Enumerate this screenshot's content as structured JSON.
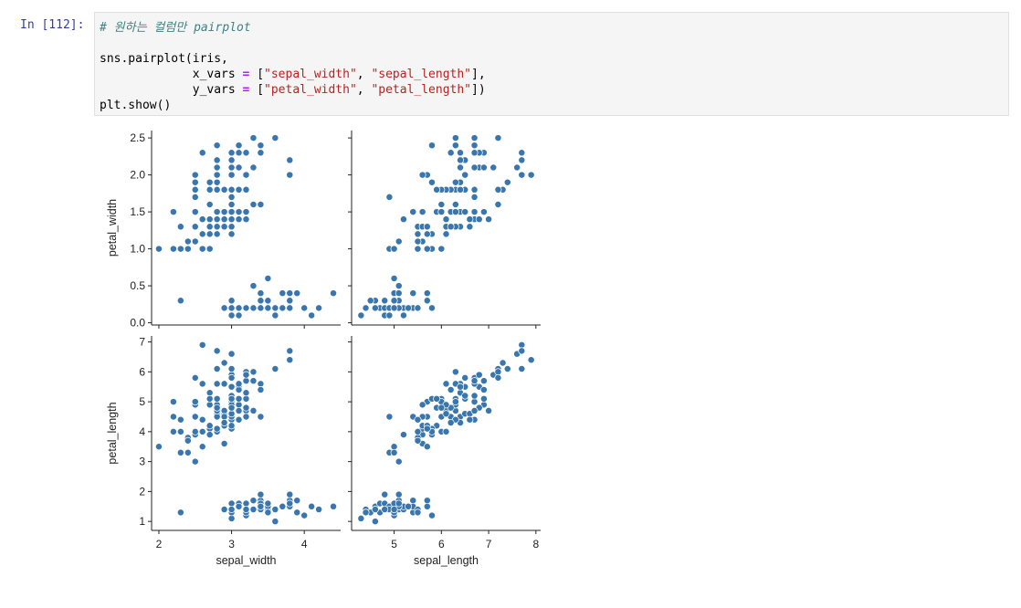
{
  "cell": {
    "prompt": "In [112]:",
    "code_lines": [
      [
        {
          "t": "# 원하는 컬럼만 pairplot",
          "c": "comment"
        }
      ],
      [
        {
          "t": "",
          "c": ""
        }
      ],
      [
        {
          "t": "sns.pairplot(iris,",
          "c": ""
        }
      ],
      [
        {
          "t": "             x_vars ",
          "c": ""
        },
        {
          "t": "=",
          "c": "op"
        },
        {
          "t": " [",
          "c": ""
        },
        {
          "t": "\"sepal_width\"",
          "c": "string"
        },
        {
          "t": ", ",
          "c": ""
        },
        {
          "t": "\"sepal_length\"",
          "c": "string"
        },
        {
          "t": "],",
          "c": ""
        }
      ],
      [
        {
          "t": "             y_vars ",
          "c": ""
        },
        {
          "t": "=",
          "c": "op"
        },
        {
          "t": " [",
          "c": ""
        },
        {
          "t": "\"petal_width\"",
          "c": "string"
        },
        {
          "t": ", ",
          "c": ""
        },
        {
          "t": "\"petal_length\"",
          "c": "string"
        },
        {
          "t": "])",
          "c": ""
        }
      ],
      [
        {
          "t": "plt.show()",
          "c": ""
        }
      ]
    ]
  },
  "colors": {
    "point": "#3a76ae",
    "axis": "#222222"
  },
  "chart_data": {
    "type": "scatter",
    "layout": "pairplot-grid",
    "xlabels": [
      "sepal_width",
      "sepal_length"
    ],
    "ylabels": [
      "petal_width",
      "petal_length"
    ],
    "xlims": [
      [
        1.9,
        4.5
      ],
      [
        4.1,
        8.1
      ]
    ],
    "ylims": [
      [
        -0.03,
        2.6
      ],
      [
        0.7,
        7.2
      ]
    ],
    "xticks": [
      [
        2,
        3,
        4
      ],
      [
        5,
        6,
        7,
        8
      ]
    ],
    "yticks": [
      [
        0.0,
        0.5,
        1.0,
        1.5,
        2.0,
        2.5
      ],
      [
        1,
        2,
        3,
        4,
        5,
        6,
        7
      ]
    ],
    "ytick_labels": [
      [
        "0.0",
        "0.5",
        "1.0",
        "1.5",
        "2.0",
        "2.5"
      ],
      [
        "1",
        "2",
        "3",
        "4",
        "5",
        "6",
        "7"
      ]
    ],
    "xtick_labels": [
      [
        "2",
        "3",
        "4"
      ],
      [
        "5",
        "6",
        "7",
        "8"
      ]
    ],
    "sepal_length": [
      5.1,
      4.9,
      4.7,
      4.6,
      5.0,
      5.4,
      4.6,
      5.0,
      4.4,
      4.9,
      5.4,
      4.8,
      4.8,
      4.3,
      5.8,
      5.7,
      5.4,
      5.1,
      5.7,
      5.1,
      5.4,
      5.1,
      4.6,
      5.1,
      4.8,
      5.0,
      5.0,
      5.2,
      5.2,
      4.7,
      4.8,
      5.4,
      5.2,
      5.5,
      4.9,
      5.0,
      5.5,
      4.9,
      4.4,
      5.1,
      5.0,
      4.5,
      4.4,
      5.0,
      5.1,
      4.8,
      5.1,
      4.6,
      5.3,
      5.0,
      7.0,
      6.4,
      6.9,
      5.5,
      6.5,
      5.7,
      6.3,
      4.9,
      6.6,
      5.2,
      5.0,
      5.9,
      6.0,
      6.1,
      5.6,
      6.7,
      5.6,
      5.8,
      6.2,
      5.6,
      5.9,
      6.1,
      6.3,
      6.1,
      6.4,
      6.6,
      6.8,
      6.7,
      6.0,
      5.7,
      5.5,
      5.5,
      5.8,
      6.0,
      5.4,
      6.0,
      6.7,
      6.3,
      5.6,
      5.5,
      5.5,
      6.1,
      5.8,
      5.0,
      5.6,
      5.7,
      5.7,
      6.2,
      5.1,
      5.7,
      6.3,
      5.8,
      7.1,
      6.3,
      6.5,
      7.6,
      4.9,
      7.3,
      6.7,
      7.2,
      6.5,
      6.4,
      6.8,
      5.7,
      5.8,
      6.4,
      6.5,
      7.7,
      7.7,
      6.0,
      6.9,
      5.6,
      7.7,
      6.3,
      6.7,
      7.2,
      6.2,
      6.1,
      6.4,
      7.2,
      7.4,
      7.9,
      6.4,
      6.3,
      6.1,
      7.7,
      6.3,
      6.4,
      6.0,
      6.9,
      6.7,
      6.9,
      5.8,
      6.8,
      6.7,
      6.7,
      6.3,
      6.5,
      6.2,
      5.9
    ],
    "sepal_width": [
      3.5,
      3.0,
      3.2,
      3.1,
      3.6,
      3.9,
      3.4,
      3.4,
      2.9,
      3.1,
      3.7,
      3.4,
      3.0,
      3.0,
      4.0,
      4.4,
      3.9,
      3.5,
      3.8,
      3.8,
      3.4,
      3.7,
      3.6,
      3.3,
      3.4,
      3.0,
      3.4,
      3.5,
      3.4,
      3.2,
      3.1,
      3.4,
      4.1,
      4.2,
      3.1,
      3.2,
      3.5,
      3.6,
      3.0,
      3.4,
      3.5,
      2.3,
      3.2,
      3.5,
      3.8,
      3.0,
      3.8,
      3.2,
      3.7,
      3.3,
      3.2,
      3.2,
      3.1,
      2.3,
      2.8,
      2.8,
      3.3,
      2.4,
      2.9,
      2.7,
      2.0,
      3.0,
      2.2,
      2.9,
      2.9,
      3.1,
      3.0,
      2.7,
      2.2,
      2.5,
      3.2,
      2.8,
      2.5,
      2.8,
      2.9,
      3.0,
      2.8,
      3.0,
      2.9,
      2.6,
      2.4,
      2.4,
      2.7,
      2.7,
      3.0,
      3.4,
      3.1,
      2.3,
      3.0,
      2.5,
      2.6,
      3.0,
      2.6,
      2.3,
      2.7,
      3.0,
      2.9,
      2.9,
      2.5,
      2.8,
      3.3,
      2.7,
      3.0,
      2.9,
      3.0,
      3.0,
      2.5,
      2.9,
      2.5,
      3.6,
      3.2,
      2.7,
      3.0,
      2.5,
      2.8,
      3.2,
      3.0,
      3.8,
      2.6,
      2.2,
      3.2,
      2.8,
      2.8,
      2.7,
      3.3,
      3.2,
      2.8,
      3.0,
      2.8,
      3.0,
      2.8,
      3.8,
      2.8,
      2.8,
      2.6,
      3.0,
      3.4,
      3.1,
      3.0,
      3.1,
      3.1,
      3.1,
      2.7,
      3.2,
      3.3,
      3.0,
      2.5,
      3.0,
      3.4,
      3.0
    ],
    "petal_length": [
      1.4,
      1.4,
      1.3,
      1.5,
      1.4,
      1.7,
      1.4,
      1.5,
      1.4,
      1.5,
      1.5,
      1.6,
      1.4,
      1.1,
      1.2,
      1.5,
      1.3,
      1.4,
      1.7,
      1.5,
      1.7,
      1.5,
      1.0,
      1.7,
      1.9,
      1.6,
      1.6,
      1.5,
      1.4,
      1.6,
      1.6,
      1.5,
      1.5,
      1.4,
      1.5,
      1.2,
      1.3,
      1.4,
      1.3,
      1.5,
      1.3,
      1.3,
      1.3,
      1.6,
      1.9,
      1.4,
      1.6,
      1.4,
      1.5,
      1.4,
      4.7,
      4.5,
      4.9,
      4.0,
      4.6,
      4.5,
      4.7,
      3.3,
      4.6,
      3.9,
      3.5,
      4.2,
      4.0,
      4.7,
      3.6,
      4.4,
      4.5,
      4.1,
      4.5,
      3.9,
      4.8,
      4.0,
      4.9,
      4.7,
      4.3,
      4.4,
      4.8,
      5.0,
      4.5,
      3.5,
      3.8,
      3.7,
      3.9,
      5.1,
      4.5,
      4.5,
      4.7,
      4.4,
      4.1,
      4.0,
      4.4,
      4.6,
      4.0,
      3.3,
      4.2,
      4.2,
      4.2,
      4.3,
      3.0,
      4.1,
      6.0,
      5.1,
      5.9,
      5.6,
      5.8,
      6.6,
      4.5,
      6.3,
      5.8,
      6.1,
      5.1,
      5.3,
      5.5,
      5.0,
      5.1,
      5.3,
      5.5,
      6.7,
      6.9,
      5.0,
      5.7,
      4.9,
      6.7,
      4.9,
      5.7,
      6.0,
      4.8,
      4.9,
      5.6,
      5.8,
      6.1,
      6.4,
      5.6,
      5.1,
      5.6,
      6.1,
      5.6,
      5.5,
      4.8,
      5.4,
      5.6,
      5.1,
      5.1,
      5.9,
      5.7,
      5.2,
      5.0,
      5.2,
      5.4,
      5.1
    ],
    "petal_width": [
      0.2,
      0.2,
      0.2,
      0.2,
      0.2,
      0.4,
      0.3,
      0.2,
      0.2,
      0.1,
      0.2,
      0.2,
      0.1,
      0.1,
      0.2,
      0.4,
      0.4,
      0.3,
      0.3,
      0.3,
      0.2,
      0.4,
      0.2,
      0.5,
      0.2,
      0.2,
      0.4,
      0.2,
      0.2,
      0.2,
      0.2,
      0.4,
      0.1,
      0.2,
      0.2,
      0.2,
      0.2,
      0.1,
      0.2,
      0.2,
      0.3,
      0.3,
      0.2,
      0.6,
      0.4,
      0.3,
      0.2,
      0.2,
      0.2,
      0.2,
      1.4,
      1.5,
      1.5,
      1.3,
      1.5,
      1.3,
      1.6,
      1.0,
      1.3,
      1.4,
      1.0,
      1.5,
      1.0,
      1.4,
      1.3,
      1.4,
      1.5,
      1.0,
      1.5,
      1.1,
      1.8,
      1.3,
      1.5,
      1.2,
      1.3,
      1.4,
      1.4,
      1.7,
      1.5,
      1.0,
      1.1,
      1.0,
      1.2,
      1.6,
      1.5,
      1.6,
      1.5,
      1.3,
      1.3,
      1.3,
      1.2,
      1.4,
      1.2,
      1.0,
      1.3,
      1.2,
      1.3,
      1.3,
      1.1,
      1.3,
      2.5,
      1.9,
      2.1,
      1.8,
      2.2,
      2.1,
      1.7,
      1.8,
      1.8,
      2.5,
      2.0,
      1.9,
      2.1,
      2.0,
      2.4,
      2.3,
      1.8,
      2.2,
      2.3,
      1.5,
      2.3,
      2.0,
      2.0,
      1.8,
      2.1,
      1.8,
      1.8,
      1.8,
      2.1,
      1.6,
      1.9,
      2.0,
      2.2,
      1.5,
      1.4,
      2.3,
      2.4,
      1.8,
      1.8,
      2.1,
      2.4,
      2.3,
      1.9,
      2.3,
      2.5,
      2.3,
      1.9,
      2.0,
      2.3,
      1.8
    ]
  }
}
